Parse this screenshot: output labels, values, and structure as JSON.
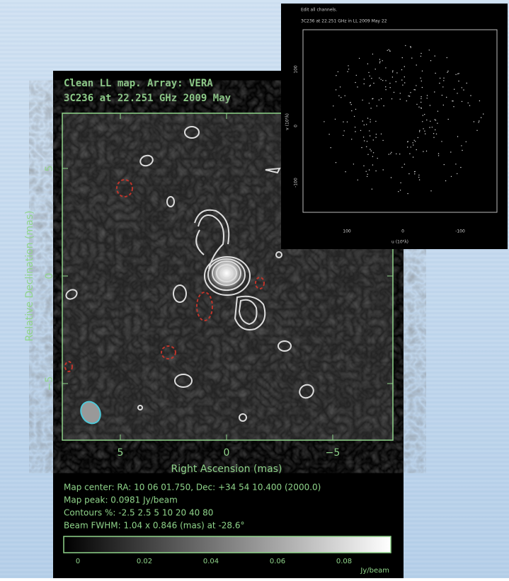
{
  "main_panel": {
    "title": "Clean LL map.  Array:  VERA",
    "subtitle": "3C236 at 22.251 GHz 2009 May",
    "y_ticks": [
      "5",
      "0",
      "−5"
    ],
    "x_ticks": [
      "5",
      "0",
      "−5"
    ],
    "x_label": "Right Ascension   (mas)",
    "y_label": "Relative Declination   (mas)",
    "info": [
      "Map center:  RA: 10 06 01.750,  Dec: +34 54 10.400  (2000.0)",
      "Map peak: 0.0981 Jy/beam",
      "Contours %: -2.5 2.5 5 10 20 40 80",
      "Beam FWHM: 1.04 x 0.846 (mas) at -28.6°"
    ],
    "colorbar": {
      "ticks": [
        "0",
        "0.02",
        "0.04",
        "0.06",
        "0.08"
      ],
      "unit": "Jy/beam"
    }
  },
  "inset_panel": {
    "title": "Edit all channels.",
    "subtitle": "3C236 at 22.251 GHz in LL  2009 May 22",
    "y_ticks": [
      "100",
      "0",
      "-100"
    ],
    "x_ticks": [
      "100",
      "0",
      "-100"
    ],
    "x_label": "u (10⁶λ)",
    "y_label": "v (10⁶λ)"
  }
}
